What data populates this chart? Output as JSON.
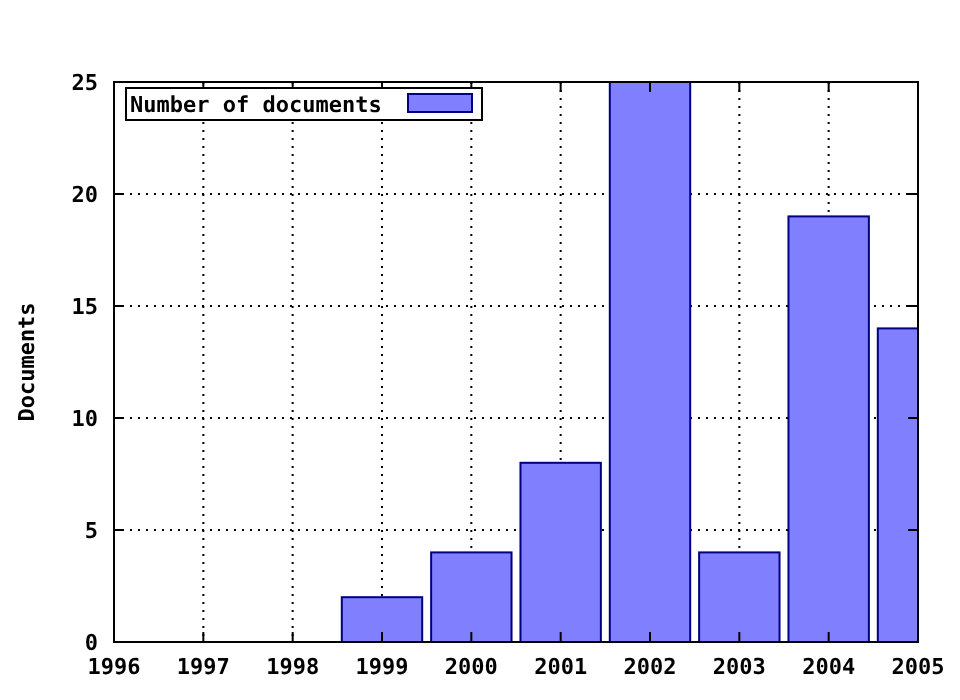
{
  "chart_data": {
    "type": "bar",
    "ylabel": "Documents",
    "x": [
      1999,
      2000,
      2001,
      2002,
      2003,
      2004,
      2005
    ],
    "series": [
      {
        "name": "Number of documents",
        "color": "#8080ff",
        "values": [
          2,
          4,
          8,
          25,
          4,
          19,
          14
        ]
      }
    ],
    "xlim": [
      1996,
      2005
    ],
    "xticks": [
      1996,
      1997,
      1998,
      1999,
      2000,
      2001,
      2002,
      2003,
      2004,
      2005
    ],
    "ylim": [
      0,
      25
    ],
    "yticks": [
      0,
      5,
      10,
      15,
      20,
      25
    ],
    "grid": true,
    "legend": "top left"
  }
}
